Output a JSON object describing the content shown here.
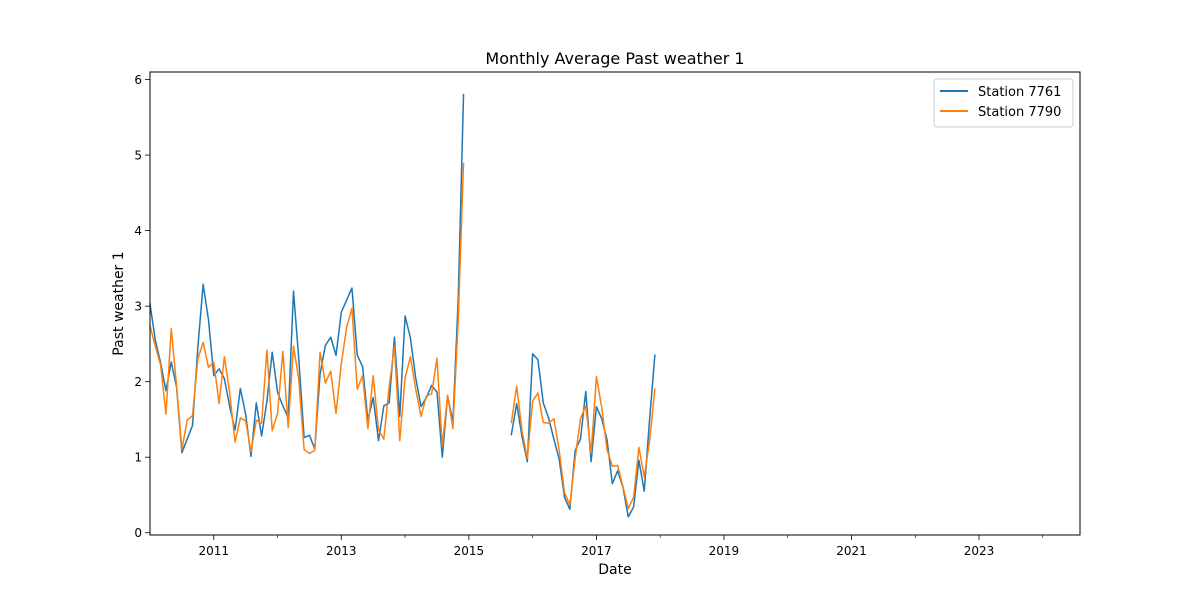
{
  "chart_data": {
    "type": "line",
    "title": "Monthly Average Past weather 1",
    "xlabel": "Date",
    "ylabel": "Past weather 1",
    "xlim": [
      "2010-01",
      "2024-08"
    ],
    "ylim": [
      -0.03,
      6.1
    ],
    "x_ticks": [
      {
        "date": "2011-01",
        "label": "2011"
      },
      {
        "date": "2013-01",
        "label": "2013"
      },
      {
        "date": "2015-01",
        "label": "2015"
      },
      {
        "date": "2017-01",
        "label": "2017"
      },
      {
        "date": "2019-01",
        "label": "2019"
      },
      {
        "date": "2021-01",
        "label": "2021"
      },
      {
        "date": "2023-01",
        "label": "2023"
      }
    ],
    "x_minor_ticks": [
      "2012-01",
      "2014-01",
      "2016-01",
      "2018-01",
      "2020-01",
      "2022-01",
      "2024-01"
    ],
    "y_ticks": [
      0,
      1,
      2,
      3,
      4,
      5,
      6
    ],
    "grid": false,
    "legend_position": "top-right",
    "series": [
      {
        "name": "Station 7761",
        "color": "#1f77b4",
        "points": [
          [
            "2010-01",
            3.03
          ],
          [
            "2010-02",
            2.55
          ],
          [
            "2010-03",
            2.25
          ],
          [
            "2010-04",
            1.88
          ],
          [
            "2010-05",
            2.26
          ],
          [
            "2010-06",
            1.93
          ],
          [
            "2010-07",
            1.06
          ],
          [
            "2010-08",
            1.24
          ],
          [
            "2010-09",
            1.42
          ],
          [
            "2010-10",
            2.45
          ],
          [
            "2010-11",
            3.29
          ],
          [
            "2010-12",
            2.82
          ],
          [
            "2011-01",
            2.08
          ],
          [
            "2011-02",
            2.17
          ],
          [
            "2011-03",
            2.04
          ],
          [
            "2011-04",
            1.67
          ],
          [
            "2011-05",
            1.36
          ],
          [
            "2011-06",
            1.91
          ],
          [
            "2011-07",
            1.57
          ],
          [
            "2011-08",
            1.01
          ],
          [
            "2011-09",
            1.72
          ],
          [
            "2011-10",
            1.28
          ],
          [
            "2011-11",
            1.74
          ],
          [
            "2011-12",
            2.39
          ],
          [
            "2012-01",
            1.86
          ],
          [
            "2012-02",
            1.68
          ],
          [
            "2012-03",
            1.52
          ],
          [
            "2012-04",
            3.2
          ],
          [
            "2012-05",
            2.3
          ],
          [
            "2012-06",
            1.26
          ],
          [
            "2012-07",
            1.29
          ],
          [
            "2012-08",
            1.11
          ],
          [
            "2012-09",
            2.1
          ],
          [
            "2012-10",
            2.48
          ],
          [
            "2012-11",
            2.59
          ],
          [
            "2012-12",
            2.35
          ],
          [
            "2013-01",
            2.92
          ],
          [
            "2013-02",
            3.08
          ],
          [
            "2013-03",
            3.24
          ],
          [
            "2013-04",
            2.35
          ],
          [
            "2013-05",
            2.2
          ],
          [
            "2013-06",
            1.49
          ],
          [
            "2013-07",
            1.79
          ],
          [
            "2013-08",
            1.22
          ],
          [
            "2013-09",
            1.68
          ],
          [
            "2013-10",
            1.72
          ],
          [
            "2013-11",
            2.59
          ],
          [
            "2013-12",
            1.54
          ],
          [
            "2014-01",
            2.87
          ],
          [
            "2014-02",
            2.58
          ],
          [
            "2014-03",
            2.05
          ],
          [
            "2014-04",
            1.67
          ],
          [
            "2014-05",
            1.79
          ],
          [
            "2014-06",
            1.95
          ],
          [
            "2014-07",
            1.86
          ],
          [
            "2014-08",
            1.0
          ],
          [
            "2014-09",
            1.81
          ],
          [
            "2014-10",
            1.47
          ],
          [
            "2014-11",
            3.1
          ],
          [
            "2014-12",
            5.8
          ],
          [
            "2015-09",
            1.3
          ],
          [
            "2015-10",
            1.71
          ],
          [
            "2015-11",
            1.27
          ],
          [
            "2015-12",
            0.94
          ],
          [
            "2016-01",
            2.37
          ],
          [
            "2016-02",
            2.29
          ],
          [
            "2016-03",
            1.72
          ],
          [
            "2016-04",
            1.52
          ],
          [
            "2016-05",
            1.24
          ],
          [
            "2016-06",
            0.97
          ],
          [
            "2016-07",
            0.47
          ],
          [
            "2016-08",
            0.31
          ],
          [
            "2016-09",
            1.09
          ],
          [
            "2016-10",
            1.24
          ],
          [
            "2016-11",
            1.87
          ],
          [
            "2016-12",
            0.94
          ],
          [
            "2017-01",
            1.67
          ],
          [
            "2017-02",
            1.51
          ],
          [
            "2017-03",
            1.23
          ],
          [
            "2017-04",
            0.65
          ],
          [
            "2017-05",
            0.82
          ],
          [
            "2017-06",
            0.6
          ],
          [
            "2017-07",
            0.21
          ],
          [
            "2017-08",
            0.34
          ],
          [
            "2017-09",
            0.96
          ],
          [
            "2017-10",
            0.55
          ],
          [
            "2017-11",
            1.49
          ],
          [
            "2017-12",
            2.35
          ]
        ]
      },
      {
        "name": "Station 7790",
        "color": "#ff7f0e",
        "points": [
          [
            "2010-01",
            2.74
          ],
          [
            "2010-02",
            2.47
          ],
          [
            "2010-03",
            2.22
          ],
          [
            "2010-04",
            1.57
          ],
          [
            "2010-05",
            2.7
          ],
          [
            "2010-06",
            1.95
          ],
          [
            "2010-07",
            1.1
          ],
          [
            "2010-08",
            1.49
          ],
          [
            "2010-09",
            1.55
          ],
          [
            "2010-10",
            2.3
          ],
          [
            "2010-11",
            2.52
          ],
          [
            "2010-12",
            2.19
          ],
          [
            "2011-01",
            2.26
          ],
          [
            "2011-02",
            1.71
          ],
          [
            "2011-03",
            2.33
          ],
          [
            "2011-04",
            1.85
          ],
          [
            "2011-05",
            1.2
          ],
          [
            "2011-06",
            1.52
          ],
          [
            "2011-07",
            1.48
          ],
          [
            "2011-08",
            1.07
          ],
          [
            "2011-09",
            1.49
          ],
          [
            "2011-10",
            1.45
          ],
          [
            "2011-11",
            2.42
          ],
          [
            "2011-12",
            1.35
          ],
          [
            "2012-01",
            1.58
          ],
          [
            "2012-02",
            2.4
          ],
          [
            "2012-03",
            1.39
          ],
          [
            "2012-04",
            2.47
          ],
          [
            "2012-05",
            2.03
          ],
          [
            "2012-06",
            1.1
          ],
          [
            "2012-07",
            1.05
          ],
          [
            "2012-08",
            1.09
          ],
          [
            "2012-09",
            2.39
          ],
          [
            "2012-10",
            1.98
          ],
          [
            "2012-11",
            2.14
          ],
          [
            "2012-12",
            1.58
          ],
          [
            "2013-01",
            2.24
          ],
          [
            "2013-02",
            2.72
          ],
          [
            "2013-03",
            2.97
          ],
          [
            "2013-04",
            1.9
          ],
          [
            "2013-05",
            2.08
          ],
          [
            "2013-06",
            1.38
          ],
          [
            "2013-07",
            2.08
          ],
          [
            "2013-08",
            1.36
          ],
          [
            "2013-09",
            1.24
          ],
          [
            "2013-10",
            1.93
          ],
          [
            "2013-11",
            2.47
          ],
          [
            "2013-12",
            1.22
          ],
          [
            "2014-01",
            2.05
          ],
          [
            "2014-02",
            2.33
          ],
          [
            "2014-03",
            1.9
          ],
          [
            "2014-04",
            1.54
          ],
          [
            "2014-05",
            1.81
          ],
          [
            "2014-06",
            1.84
          ],
          [
            "2014-07",
            2.31
          ],
          [
            "2014-08",
            1.15
          ],
          [
            "2014-09",
            1.82
          ],
          [
            "2014-10",
            1.38
          ],
          [
            "2014-11",
            2.82
          ],
          [
            "2014-12",
            4.89
          ],
          [
            "2015-09",
            1.46
          ],
          [
            "2015-10",
            1.94
          ],
          [
            "2015-11",
            1.35
          ],
          [
            "2015-12",
            0.98
          ],
          [
            "2016-01",
            1.74
          ],
          [
            "2016-02",
            1.85
          ],
          [
            "2016-03",
            1.46
          ],
          [
            "2016-04",
            1.45
          ],
          [
            "2016-05",
            1.51
          ],
          [
            "2016-06",
            1.09
          ],
          [
            "2016-07",
            0.53
          ],
          [
            "2016-08",
            0.37
          ],
          [
            "2016-09",
            0.98
          ],
          [
            "2016-10",
            1.51
          ],
          [
            "2016-11",
            1.68
          ],
          [
            "2016-12",
            1.05
          ],
          [
            "2017-01",
            2.07
          ],
          [
            "2017-02",
            1.66
          ],
          [
            "2017-03",
            1.1
          ],
          [
            "2017-04",
            0.88
          ],
          [
            "2017-05",
            0.89
          ],
          [
            "2017-06",
            0.61
          ],
          [
            "2017-07",
            0.32
          ],
          [
            "2017-08",
            0.47
          ],
          [
            "2017-09",
            1.13
          ],
          [
            "2017-10",
            0.74
          ],
          [
            "2017-11",
            1.21
          ],
          [
            "2017-12",
            1.9
          ]
        ]
      }
    ]
  }
}
